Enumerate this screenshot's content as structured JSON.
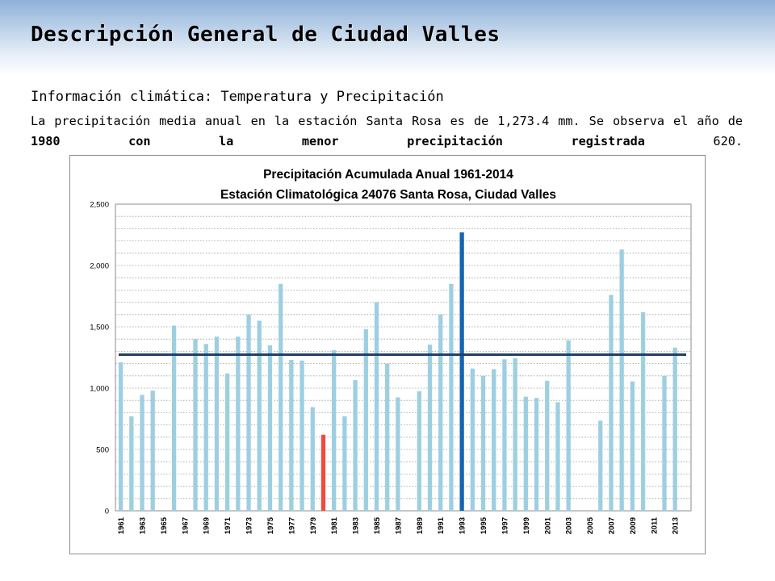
{
  "slide": {
    "title": "Descripción General de Ciudad Valles",
    "subtitle": "Información climática: Temperatura y Precipitación",
    "paragraph_part1": "La precipitación media anual en la estación Santa Rosa es de 1,273.4 mm. Se observa el año de ",
    "paragraph_bold": "1980 con la menor precipitación registrada",
    "paragraph_part2": " 620.",
    "colors": {
      "banner": "#a9c3e3",
      "bar_normal": "#9ecfe0",
      "bar_min": "#f04b3e",
      "bar_max": "#1565b0",
      "mean_line": "#1f3f6b"
    }
  },
  "chart_data": {
    "type": "bar",
    "title": "Precipitación Acumulada Anual 1961-2014",
    "subtitle": "Estación Climatológica 24076 Santa Rosa, Ciudad Valles",
    "xlabel": "",
    "ylabel": "",
    "ylim": [
      0,
      2500
    ],
    "yticks": [
      0,
      500,
      1000,
      1500,
      2000,
      2500
    ],
    "ytick_labels": [
      "0",
      "500",
      "1,000",
      "1,500",
      "2,000",
      "2,500"
    ],
    "minor_grid_step": 100,
    "grid": true,
    "legend": "none",
    "mean_line": 1273.4,
    "categories": [
      "1961",
      "1962",
      "1963",
      "1964",
      "1965",
      "1966",
      "1967",
      "1968",
      "1969",
      "1970",
      "1971",
      "1972",
      "1973",
      "1974",
      "1975",
      "1976",
      "1977",
      "1978",
      "1979",
      "1980",
      "1981",
      "1982",
      "1983",
      "1984",
      "1985",
      "1986",
      "1987",
      "1988",
      "1989",
      "1990",
      "1991",
      "1992",
      "1993",
      "1994",
      "1995",
      "1996",
      "1997",
      "1998",
      "1999",
      "2000",
      "2001",
      "2002",
      "2003",
      "2004",
      "2005",
      "2006",
      "2007",
      "2008",
      "2009",
      "2010",
      "2011",
      "2012",
      "2013",
      "2014"
    ],
    "shown_tick_labels": [
      "1961",
      "1963",
      "1965",
      "1967",
      "1969",
      "1971",
      "1973",
      "1975",
      "1977",
      "1979",
      "1981",
      "1983",
      "1985",
      "1987",
      "1989",
      "1991",
      "1993",
      "1995",
      "1997",
      "1999",
      "2001",
      "2003",
      "2005",
      "2007",
      "2009",
      "2011",
      "2013"
    ],
    "values": [
      1210,
      770,
      945,
      980,
      null,
      1510,
      null,
      1400,
      1360,
      1420,
      1120,
      1420,
      1600,
      1550,
      1350,
      1850,
      1230,
      1225,
      845,
      620,
      1310,
      770,
      1065,
      1480,
      1700,
      1200,
      925,
      null,
      975,
      1355,
      1600,
      1850,
      2270,
      1160,
      1100,
      1155,
      1235,
      1245,
      930,
      920,
      1060,
      885,
      1390,
      null,
      null,
      735,
      1760,
      2130,
      1055,
      1620,
      null,
      1100,
      1330,
      null
    ],
    "highlight": {
      "min_year": "1980",
      "max_year": "1993"
    }
  }
}
